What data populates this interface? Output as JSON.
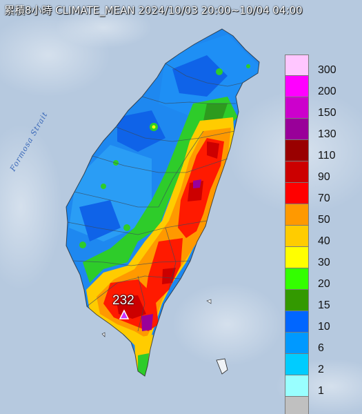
{
  "title": "累積8小時 CLIMATE_MEAN 2024/10/03 20:00~10/04 04:00",
  "strait_label": "Formosa Strait",
  "max_marker": {
    "label": "232",
    "symbol": "triangle"
  },
  "legend": [
    {
      "label": "300",
      "color": "#ffc6ff"
    },
    {
      "label": "200",
      "color": "#ff00ff"
    },
    {
      "label": "150",
      "color": "#cc00cc"
    },
    {
      "label": "130",
      "color": "#990099"
    },
    {
      "label": "110",
      "color": "#990000"
    },
    {
      "label": "90",
      "color": "#cc0000"
    },
    {
      "label": "70",
      "color": "#ff0000"
    },
    {
      "label": "50",
      "color": "#ff9900"
    },
    {
      "label": "40",
      "color": "#ffcc00"
    },
    {
      "label": "30",
      "color": "#ffff00"
    },
    {
      "label": "20",
      "color": "#33ff00"
    },
    {
      "label": "15",
      "color": "#339900"
    },
    {
      "label": "10",
      "color": "#0066ff"
    },
    {
      "label": "6",
      "color": "#0099ff"
    },
    {
      "label": "2",
      "color": "#00ccff"
    },
    {
      "label": "1",
      "color": "#99ffff"
    },
    {
      "label": "",
      "color": "#c0c0c0"
    }
  ]
}
